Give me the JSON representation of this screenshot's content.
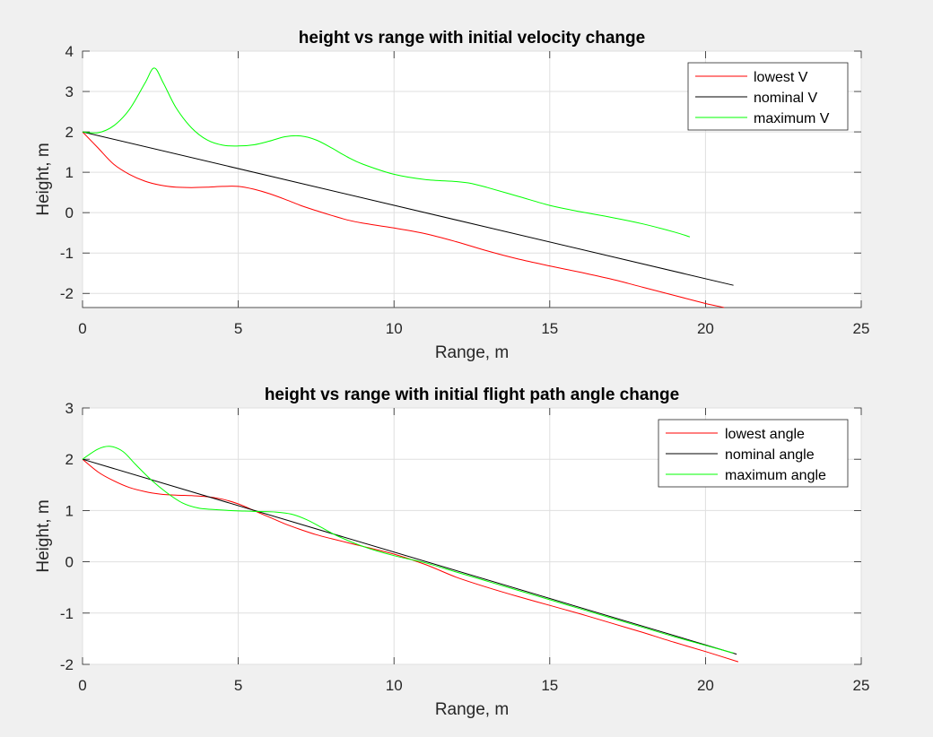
{
  "chart_data": [
    {
      "type": "line",
      "title": "height vs range with initial velocity change",
      "xlabel": "Range, m",
      "ylabel": "Height, m",
      "xlim": [
        0,
        25
      ],
      "ylim": [
        -2.35,
        4
      ],
      "xticks": [
        "0",
        "5",
        "10",
        "15",
        "20",
        "25"
      ],
      "yticks": [
        "-2",
        "-1",
        "0",
        "1",
        "2",
        "3",
        "4"
      ],
      "grid": true,
      "legend_position": "top-right",
      "series": [
        {
          "name": "lowest V",
          "color": "#ff0000",
          "x": [
            0,
            0.5,
            1,
            1.5,
            2,
            2.5,
            3,
            3.5,
            4,
            4.5,
            5,
            5.5,
            6,
            6.5,
            7,
            7.5,
            8,
            8.5,
            9,
            10,
            11,
            12,
            13,
            14,
            15,
            16,
            17,
            18,
            19,
            20,
            20.6
          ],
          "y": [
            2,
            1.6,
            1.2,
            0.95,
            0.78,
            0.68,
            0.63,
            0.62,
            0.63,
            0.65,
            0.65,
            0.58,
            0.47,
            0.33,
            0.18,
            0.05,
            -0.07,
            -0.18,
            -0.26,
            -0.38,
            -0.52,
            -0.72,
            -0.95,
            -1.15,
            -1.32,
            -1.48,
            -1.65,
            -1.85,
            -2.05,
            -2.25,
            -2.35
          ]
        },
        {
          "name": "nominal V",
          "color": "#000000",
          "x": [
            0,
            20.9
          ],
          "y": [
            2,
            -1.8
          ]
        },
        {
          "name": "maximum V",
          "color": "#00ff00",
          "x": [
            0,
            0.5,
            1,
            1.5,
            2,
            2.3,
            2.6,
            3,
            3.5,
            4,
            4.5,
            5,
            5.5,
            6,
            6.5,
            7,
            7.5,
            8,
            8.5,
            9,
            10,
            11,
            12,
            12.5,
            13,
            14,
            15,
            16,
            17,
            18,
            19,
            19.5
          ],
          "y": [
            2,
            1.98,
            2.15,
            2.55,
            3.2,
            3.58,
            3.2,
            2.6,
            2.1,
            1.8,
            1.67,
            1.65,
            1.68,
            1.77,
            1.88,
            1.9,
            1.8,
            1.6,
            1.38,
            1.2,
            0.95,
            0.82,
            0.77,
            0.72,
            0.62,
            0.4,
            0.18,
            0.02,
            -0.12,
            -0.28,
            -0.48,
            -0.6
          ]
        }
      ]
    },
    {
      "type": "line",
      "title": "height vs range with initial flight path angle change",
      "xlabel": "Range, m",
      "ylabel": "Height, m",
      "xlim": [
        0,
        25
      ],
      "ylim": [
        -2,
        3
      ],
      "xticks": [
        "0",
        "5",
        "10",
        "15",
        "20",
        "25"
      ],
      "yticks": [
        "-2",
        "-1",
        "0",
        "1",
        "2",
        "3"
      ],
      "grid": true,
      "legend_position": "top-right",
      "series": [
        {
          "name": "lowest angle",
          "color": "#ff0000",
          "x": [
            0,
            0.5,
            1,
            1.5,
            2,
            2.5,
            3,
            3.5,
            4,
            4.5,
            5,
            5.5,
            6,
            6.5,
            7,
            7.5,
            8,
            9,
            10,
            11,
            12,
            13,
            14,
            15,
            16,
            17,
            18,
            19,
            20,
            21.05
          ],
          "y": [
            2,
            1.75,
            1.58,
            1.45,
            1.37,
            1.32,
            1.3,
            1.29,
            1.27,
            1.22,
            1.13,
            1.0,
            0.87,
            0.74,
            0.63,
            0.53,
            0.45,
            0.3,
            0.15,
            -0.05,
            -0.3,
            -0.5,
            -0.68,
            -0.85,
            -1.02,
            -1.2,
            -1.38,
            -1.57,
            -1.75,
            -1.95
          ]
        },
        {
          "name": "nominal angle",
          "color": "#000000",
          "x": [
            0,
            21.0
          ],
          "y": [
            2,
            -1.8
          ]
        },
        {
          "name": "maximum angle",
          "color": "#00ff00",
          "x": [
            0,
            0.5,
            0.9,
            1.3,
            1.7,
            2.2,
            2.7,
            3.2,
            3.7,
            4.2,
            4.7,
            5.2,
            5.7,
            6.2,
            6.7,
            7.2,
            7.7,
            8.2,
            9,
            10,
            11,
            12,
            13,
            14,
            15,
            16,
            17,
            18,
            19,
            20,
            20.9
          ],
          "y": [
            2,
            2.2,
            2.25,
            2.15,
            1.9,
            1.6,
            1.35,
            1.15,
            1.05,
            1.02,
            1.0,
            0.99,
            0.98,
            0.97,
            0.93,
            0.82,
            0.66,
            0.5,
            0.3,
            0.12,
            -0.02,
            -0.2,
            -0.38,
            -0.56,
            -0.74,
            -0.92,
            -1.1,
            -1.28,
            -1.46,
            -1.63,
            -1.78
          ]
        }
      ]
    }
  ]
}
